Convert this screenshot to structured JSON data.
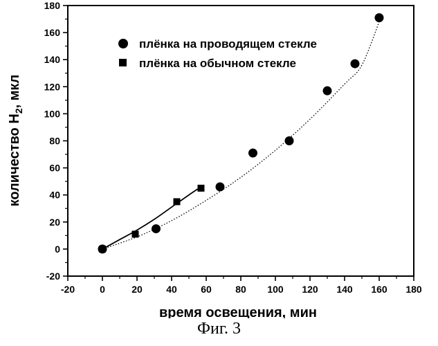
{
  "figure_caption": "Фиг. 3",
  "chart_data": {
    "type": "scatter",
    "xlabel": "время освещения, мин",
    "ylabel_main": "количество H",
    "ylabel_sub": "2",
    "ylabel_tail": ", мкл",
    "xlim": [
      -20,
      180
    ],
    "ylim": [
      -20,
      180
    ],
    "x_ticks": [
      -20,
      0,
      20,
      40,
      60,
      80,
      100,
      120,
      140,
      160,
      180
    ],
    "y_ticks": [
      -20,
      0,
      20,
      40,
      60,
      80,
      100,
      120,
      140,
      160,
      180
    ],
    "legend_position": "top-center",
    "series": [
      {
        "name": "плёнка на проводящем стекле",
        "marker": "circle",
        "x": [
          0,
          31,
          68,
          87,
          108,
          130,
          146,
          160
        ],
        "y": [
          0,
          15,
          46,
          71,
          80,
          117,
          137,
          171
        ],
        "fit": {
          "style": "dotted",
          "x": [
            0,
            20,
            40,
            60,
            80,
            100,
            120,
            140,
            150,
            160
          ],
          "y": [
            0,
            9,
            21,
            36,
            53,
            73,
            96,
            122,
            136,
            168
          ]
        }
      },
      {
        "name": "плёнка на обычном стекле",
        "marker": "square",
        "x": [
          0,
          19,
          43,
          57
        ],
        "y": [
          0,
          11,
          35,
          45
        ],
        "fit": {
          "style": "solid",
          "x": [
            0,
            10,
            20,
            30,
            40,
            50,
            57
          ],
          "y": [
            0,
            7,
            14,
            22,
            31,
            40,
            46
          ]
        }
      }
    ]
  }
}
